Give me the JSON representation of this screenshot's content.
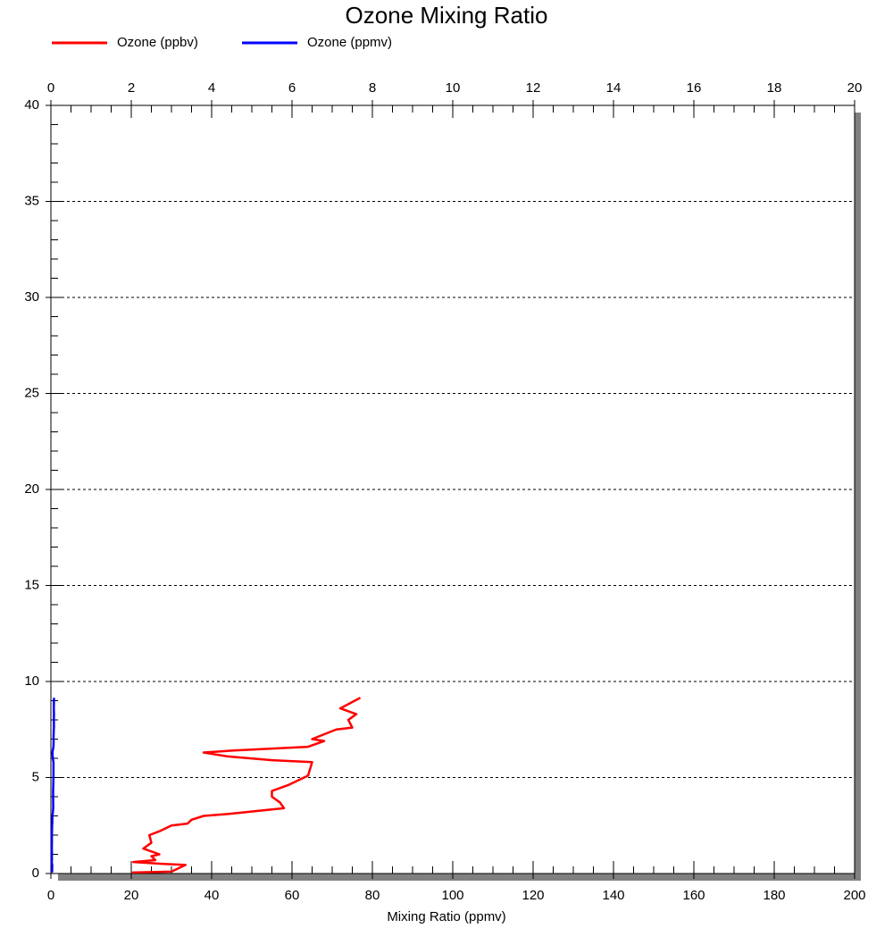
{
  "chart_data": {
    "type": "line",
    "title": "Ozone Mixing Ratio",
    "xlabel": "Mixing Ratio (ppmv)",
    "xlim": [
      0,
      200
    ],
    "xticks": [
      0,
      20,
      40,
      60,
      80,
      100,
      120,
      140,
      160,
      180,
      200
    ],
    "x2lim": [
      0,
      20
    ],
    "x2ticks": [
      0,
      2,
      4,
      6,
      8,
      10,
      12,
      14,
      16,
      18,
      20
    ],
    "ylim": [
      0,
      40
    ],
    "yticks": [
      0,
      5,
      10,
      15,
      20,
      25,
      30,
      35,
      40
    ],
    "grid": true,
    "series": [
      {
        "name": "Ozone (ppbv)",
        "color": "#ff0000",
        "axis": "x",
        "x": [
          20.2,
          30,
          33.5,
          28,
          20.5,
          26,
          25,
          27,
          23,
          25,
          24.5,
          27,
          30,
          34,
          35,
          38,
          44,
          58,
          57,
          55,
          55,
          59,
          64,
          65,
          55,
          44,
          38,
          45,
          64,
          68,
          65,
          71,
          75,
          74,
          76,
          72,
          77
        ],
        "y": [
          0.05,
          0.1,
          0.45,
          0.5,
          0.6,
          0.7,
          0.9,
          1.0,
          1.3,
          1.6,
          2.0,
          2.2,
          2.5,
          2.6,
          2.8,
          3.0,
          3.1,
          3.4,
          3.7,
          4.0,
          4.3,
          4.6,
          5.1,
          5.8,
          5.9,
          6.1,
          6.3,
          6.4,
          6.6,
          6.9,
          7.0,
          7.5,
          7.6,
          8.0,
          8.3,
          8.6,
          9.15
        ]
      },
      {
        "name": "Ozone (ppmv)",
        "color": "#0000ff",
        "axis": "x2",
        "x": [
          0.02,
          0.03,
          0.033,
          0.028,
          0.021,
          0.026,
          0.025,
          0.027,
          0.023,
          0.025,
          0.025,
          0.027,
          0.03,
          0.034,
          0.035,
          0.038,
          0.044,
          0.058,
          0.057,
          0.055,
          0.055,
          0.059,
          0.064,
          0.065,
          0.055,
          0.044,
          0.038,
          0.045,
          0.064,
          0.068,
          0.065,
          0.071,
          0.075,
          0.074,
          0.076,
          0.072,
          0.077
        ],
        "y": [
          0.05,
          0.1,
          0.45,
          0.5,
          0.6,
          0.7,
          0.9,
          1.0,
          1.3,
          1.6,
          2.0,
          2.2,
          2.5,
          2.6,
          2.8,
          3.0,
          3.1,
          3.4,
          3.7,
          4.0,
          4.3,
          4.6,
          5.1,
          5.8,
          5.9,
          6.1,
          6.3,
          6.4,
          6.6,
          6.9,
          7.0,
          7.5,
          7.6,
          8.0,
          8.3,
          8.6,
          9.15
        ]
      }
    ]
  }
}
